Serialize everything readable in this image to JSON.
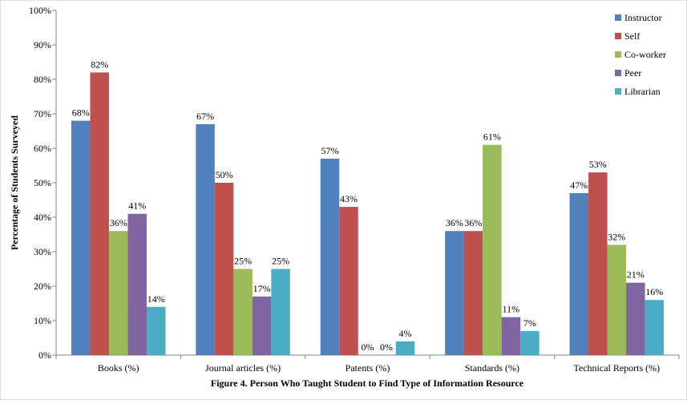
{
  "chart_data": {
    "type": "bar",
    "categories": [
      "Books (%)",
      "Journal articles (%)",
      "Patents (%)",
      "Standards (%)",
      "Technical Reports (%)"
    ],
    "series": [
      {
        "name": "Instructor",
        "color": "#4F81BD",
        "values": [
          68,
          67,
          57,
          36,
          47
        ]
      },
      {
        "name": "Self",
        "color": "#C0504D",
        "values": [
          82,
          50,
          43,
          36,
          53
        ]
      },
      {
        "name": "Co-worker",
        "color": "#9BBB59",
        "values": [
          36,
          25,
          0,
          61,
          32
        ]
      },
      {
        "name": "Peer",
        "color": "#8064A2",
        "values": [
          41,
          17,
          0,
          11,
          21
        ]
      },
      {
        "name": "Librarian",
        "color": "#4BACC6",
        "values": [
          14,
          25,
          4,
          7,
          16
        ]
      }
    ],
    "ylabel": "Percentage of Students Surveyed",
    "xlabel": "",
    "ylim": [
      0,
      100
    ],
    "ytick_step": 10,
    "ytick_format": "{v}%",
    "data_label_format": "{v}%",
    "grid": false,
    "legend_position": "top-right",
    "caption": "Figure 4. Person Who Taught Student to Find Type of Information Resource"
  }
}
